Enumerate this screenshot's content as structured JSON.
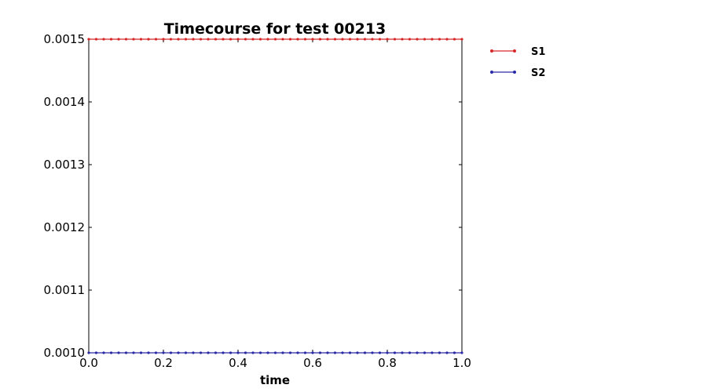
{
  "chart_data": {
    "type": "line",
    "title": "Timecourse for test 00213",
    "xlabel": "time",
    "ylabel": "",
    "xlim": [
      0.0,
      1.0
    ],
    "ylim": [
      0.001,
      0.0015
    ],
    "x_ticks": [
      0.0,
      0.2,
      0.4,
      0.6,
      0.8,
      1.0
    ],
    "x_tick_labels": [
      "0.0",
      "0.2",
      "0.4",
      "0.6",
      "0.8",
      "1.0"
    ],
    "y_ticks": [
      0.001,
      0.0011,
      0.0012,
      0.0013,
      0.0014,
      0.0015
    ],
    "y_tick_labels": [
      "0.0010",
      "0.0011",
      "0.0012",
      "0.0013",
      "0.0014",
      "0.0015"
    ],
    "grid": false,
    "legend_position": "outside-top-right",
    "x": [
      0.0,
      0.02,
      0.04,
      0.06,
      0.08,
      0.1,
      0.12,
      0.14,
      0.16,
      0.18,
      0.2,
      0.22,
      0.24,
      0.26,
      0.28,
      0.3,
      0.32,
      0.34,
      0.36,
      0.38,
      0.4,
      0.42,
      0.44,
      0.46,
      0.48,
      0.5,
      0.52,
      0.54,
      0.56,
      0.58,
      0.6,
      0.62,
      0.64,
      0.66,
      0.68,
      0.7,
      0.72,
      0.74,
      0.76,
      0.78,
      0.8,
      0.82,
      0.84,
      0.86,
      0.88,
      0.9,
      0.92,
      0.94,
      0.96,
      0.98,
      1.0
    ],
    "series": [
      {
        "name": "S1",
        "color": "#d62728",
        "values": [
          0.0015,
          0.0015,
          0.0015,
          0.0015,
          0.0015,
          0.0015,
          0.0015,
          0.0015,
          0.0015,
          0.0015,
          0.0015,
          0.0015,
          0.0015,
          0.0015,
          0.0015,
          0.0015,
          0.0015,
          0.0015,
          0.0015,
          0.0015,
          0.0015,
          0.0015,
          0.0015,
          0.0015,
          0.0015,
          0.0015,
          0.0015,
          0.0015,
          0.0015,
          0.0015,
          0.0015,
          0.0015,
          0.0015,
          0.0015,
          0.0015,
          0.0015,
          0.0015,
          0.0015,
          0.0015,
          0.0015,
          0.0015,
          0.0015,
          0.0015,
          0.0015,
          0.0015,
          0.0015,
          0.0015,
          0.0015,
          0.0015,
          0.0015,
          0.0015
        ]
      },
      {
        "name": "S2",
        "color": "#2a2aa6",
        "values": [
          0.001,
          0.001,
          0.001,
          0.001,
          0.001,
          0.001,
          0.001,
          0.001,
          0.001,
          0.001,
          0.001,
          0.001,
          0.001,
          0.001,
          0.001,
          0.001,
          0.001,
          0.001,
          0.001,
          0.001,
          0.001,
          0.001,
          0.001,
          0.001,
          0.001,
          0.001,
          0.001,
          0.001,
          0.001,
          0.001,
          0.001,
          0.001,
          0.001,
          0.001,
          0.001,
          0.001,
          0.001,
          0.001,
          0.001,
          0.001,
          0.001,
          0.001,
          0.001,
          0.001,
          0.001,
          0.001,
          0.001,
          0.001,
          0.001,
          0.001,
          0.001
        ]
      }
    ]
  }
}
